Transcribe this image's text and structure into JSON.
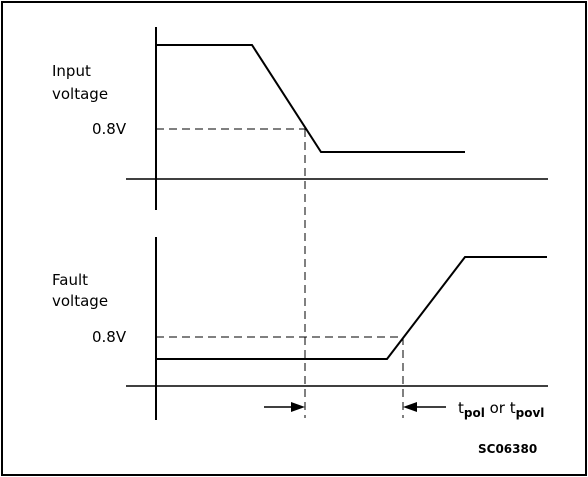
{
  "diagram": {
    "input_label_line1": "Input",
    "input_label_line2": "voltage",
    "input_threshold": "0.8V",
    "fault_label_line1": "Fault",
    "fault_label_line2": "voltage",
    "fault_threshold": "0.8V",
    "timing_t1": "t",
    "timing_t1_sub": "pol",
    "timing_or": " or ",
    "timing_t2": "t",
    "timing_t2_sub": "povl",
    "figure_code": "SC06380",
    "line_color": "#000000",
    "border_color": "#000000"
  }
}
